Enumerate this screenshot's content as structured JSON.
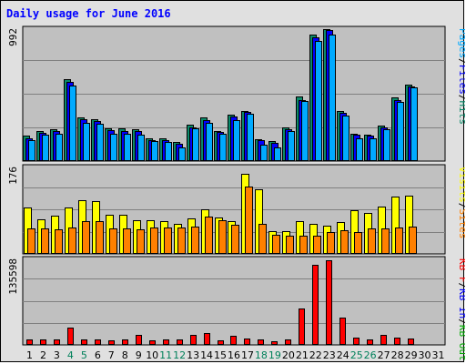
{
  "title": "Daily usage for June 2016",
  "colors": {
    "hits": "#0b8a6a",
    "files": "#0000ff",
    "pages": "#00aaff",
    "visits": "#ffff00",
    "sites": "#ff8000",
    "kbin": "#0000ff",
    "kbout": "#00aa00",
    "kbf": "#ff0000",
    "weekend_day": "#00805a"
  },
  "chart_data": {
    "type": "bar",
    "x": [
      1,
      2,
      3,
      4,
      5,
      6,
      7,
      8,
      9,
      10,
      11,
      12,
      13,
      14,
      15,
      16,
      17,
      18,
      19,
      20,
      21,
      22,
      23,
      24,
      25,
      26,
      27,
      28,
      29,
      30,
      31
    ],
    "weekend_days": [
      4,
      5,
      11,
      12,
      18,
      19,
      25,
      26
    ],
    "panels": [
      {
        "id": "usage",
        "ymax_label": "992",
        "ylim": [
          0,
          992
        ],
        "right_labels": [
          "Pages",
          "/",
          "Files",
          "/",
          "Hits"
        ],
        "series": [
          {
            "name": "Hits",
            "color": "#0b8a6a",
            "values": [
              190,
              230,
              240,
              620,
              330,
              320,
              245,
              245,
              240,
              175,
              170,
              145,
              275,
              330,
              230,
              350,
              380,
              165,
              150,
              255,
              490,
              960,
              1000,
              380,
              210,
              200,
              270,
              480,
              580,
              0,
              0
            ]
          },
          {
            "name": "Files",
            "color": "#0000ff",
            "values": [
              170,
              215,
              225,
              600,
              320,
              305,
              235,
              230,
              225,
              160,
              155,
              130,
              255,
              310,
              220,
              335,
              370,
              155,
              140,
              240,
              460,
              940,
              990,
              365,
              200,
              195,
              255,
              460,
              565,
              0,
              0
            ]
          },
          {
            "name": "Pages",
            "color": "#00aaff",
            "values": [
              160,
              200,
              210,
              570,
              290,
              285,
              210,
              210,
              200,
              150,
              145,
              105,
              250,
              290,
              205,
              310,
              355,
              125,
              100,
              225,
              455,
              910,
              960,
              345,
              175,
              170,
              240,
              450,
              560,
              0,
              0
            ]
          }
        ]
      },
      {
        "id": "visits",
        "ymax_label": "176",
        "ylim": [
          0,
          176
        ],
        "right_labels": [
          "Visits",
          "/",
          "Sites"
        ],
        "series": [
          {
            "name": "Visits",
            "color": "#ffff00",
            "values": [
              95,
              72,
              78,
              95,
              110,
              108,
              80,
              81,
              70,
              70,
              67,
              62,
              73,
              92,
              75,
              68,
              164,
              133,
              46,
              47,
              67,
              62,
              58,
              65,
              90,
              85,
              97,
              118,
              120,
              0,
              0
            ]
          },
          {
            "name": "Sites",
            "color": "#ff8000",
            "values": [
              52,
              53,
              50,
              55,
              68,
              67,
              52,
              52,
              50,
              55,
              55,
              55,
              57,
              77,
              70,
              60,
              138,
              62,
              40,
              37,
              37,
              38,
              45,
              48,
              45,
              52,
              52,
              55,
              57,
              0,
              0
            ]
          }
        ]
      },
      {
        "id": "kbytes",
        "ymax_label": "135598",
        "ylim": [
          0,
          135598
        ],
        "right_labels": [
          "KB F",
          "/",
          "KB In",
          "/",
          "KB Out"
        ],
        "series": [
          {
            "name": "KB F",
            "color": "#ff0000",
            "values": [
              9000,
              8800,
              9300,
              27000,
              8300,
              8300,
              6800,
              8300,
              16500,
              7400,
              8300,
              8300,
              16500,
              18400,
              7400,
              15000,
              10500,
              9000,
              6200,
              9300,
              58000,
              129000,
              135598,
              44000,
              11200,
              9200,
              15600,
              11200,
              10700,
              0,
              0
            ]
          }
        ]
      }
    ]
  }
}
